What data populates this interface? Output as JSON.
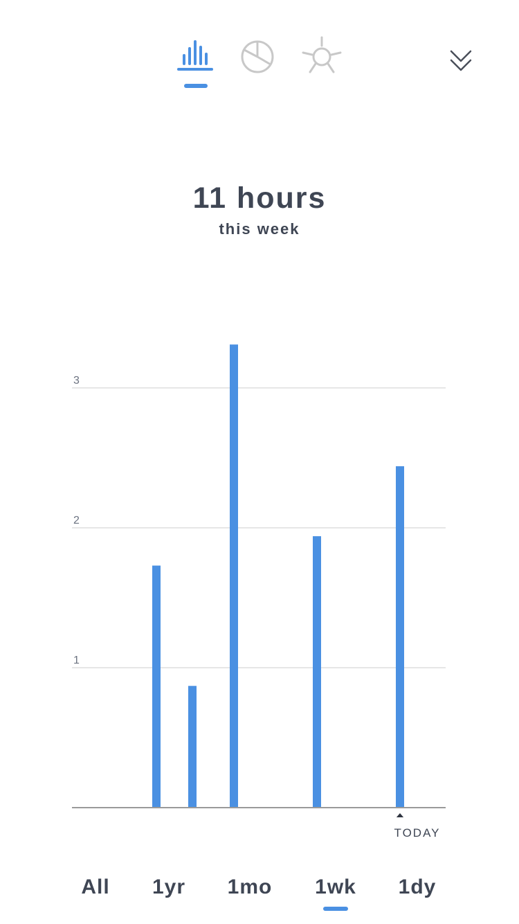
{
  "nav": {
    "views": [
      {
        "id": "bars",
        "icon": "bar-chart-icon",
        "active": true
      },
      {
        "id": "pie",
        "icon": "pie-chart-icon",
        "active": false
      },
      {
        "id": "sun",
        "icon": "sun-icon",
        "active": false
      }
    ],
    "collapse_icon": "double-chevron-down-icon"
  },
  "summary": {
    "total": "11 hours",
    "period": "this week"
  },
  "chart_data": {
    "type": "bar",
    "categories": [
      "",
      "",
      "",
      "",
      "",
      "",
      ""
    ],
    "values": [
      0,
      1.73,
      0.87,
      3.31,
      1.94,
      0,
      2.44
    ],
    "x": [
      0,
      1,
      2,
      3,
      4,
      5,
      6
    ],
    "yticks": [
      "1",
      "2",
      "3"
    ],
    "ylim": [
      0,
      3.35
    ],
    "grid": true,
    "today_label": "TODAY",
    "bar_color": "#4a90e2"
  },
  "ranges": {
    "items": [
      {
        "label": "All",
        "active": false
      },
      {
        "label": "1yr",
        "active": false
      },
      {
        "label": "1mo",
        "active": false
      },
      {
        "label": "1wk",
        "active": true
      },
      {
        "label": "1dy",
        "active": false
      }
    ]
  },
  "colors": {
    "accent": "#4a90e2",
    "inactive_icon": "#c8c8c8",
    "text": "#3f4654",
    "grid": "#dddddd",
    "axis": "#9a9a9a"
  }
}
